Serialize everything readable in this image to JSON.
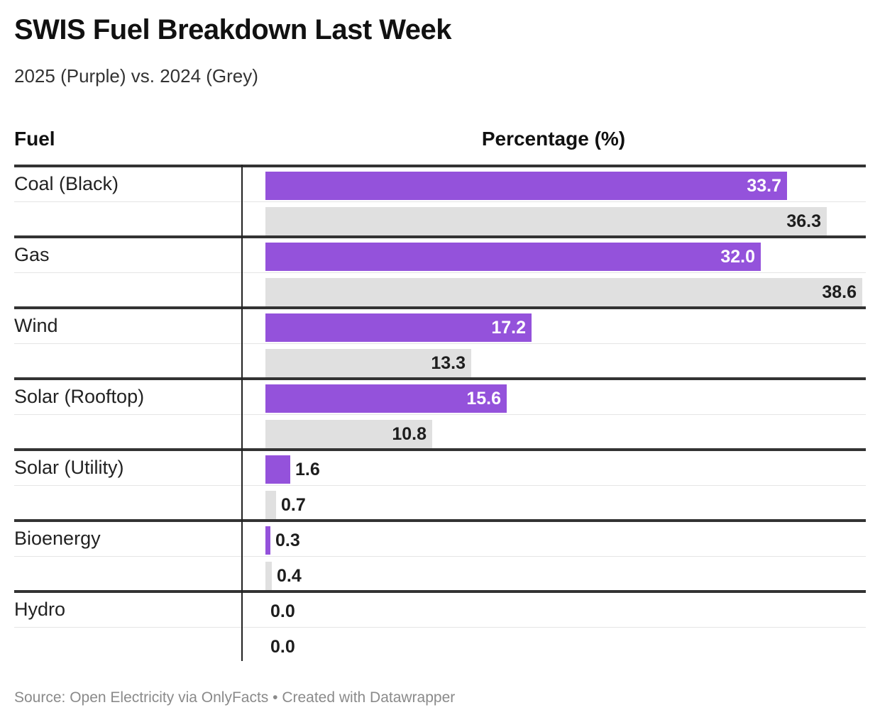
{
  "title": "SWIS Fuel Breakdown Last Week",
  "subtitle": "2025 (Purple) vs. 2024 (Grey)",
  "headers": {
    "fuel": "Fuel",
    "percentage": "Percentage (%)"
  },
  "footer": "Source: Open Electricity via OnlyFacts • Created with Datawrapper",
  "colors": {
    "y2025": "#9452db",
    "y2024": "#e0e0e0"
  },
  "chart_data": {
    "type": "bar",
    "orientation": "horizontal",
    "categories": [
      "Coal (Black)",
      "Gas",
      "Wind",
      "Solar (Rooftop)",
      "Solar (Utility)",
      "Bioenergy",
      "Hydro"
    ],
    "series": [
      {
        "values": [
          33.7,
          32.0,
          17.2,
          15.6,
          1.6,
          0.3,
          0.0
        ],
        "color": "#9452db"
      },
      {
        "values": [
          36.3,
          38.6,
          13.3,
          10.8,
          0.7,
          0.4,
          0.0
        ],
        "color": "#e0e0e0"
      }
    ],
    "value_labels": [
      [
        "33.7",
        "32.0",
        "17.2",
        "15.6",
        "1.6",
        "0.3",
        "0.0"
      ],
      [
        "36.3",
        "38.6",
        "13.3",
        "10.8",
        "0.7",
        "0.4",
        "0.0"
      ]
    ],
    "xlim": [
      0,
      40
    ]
  }
}
